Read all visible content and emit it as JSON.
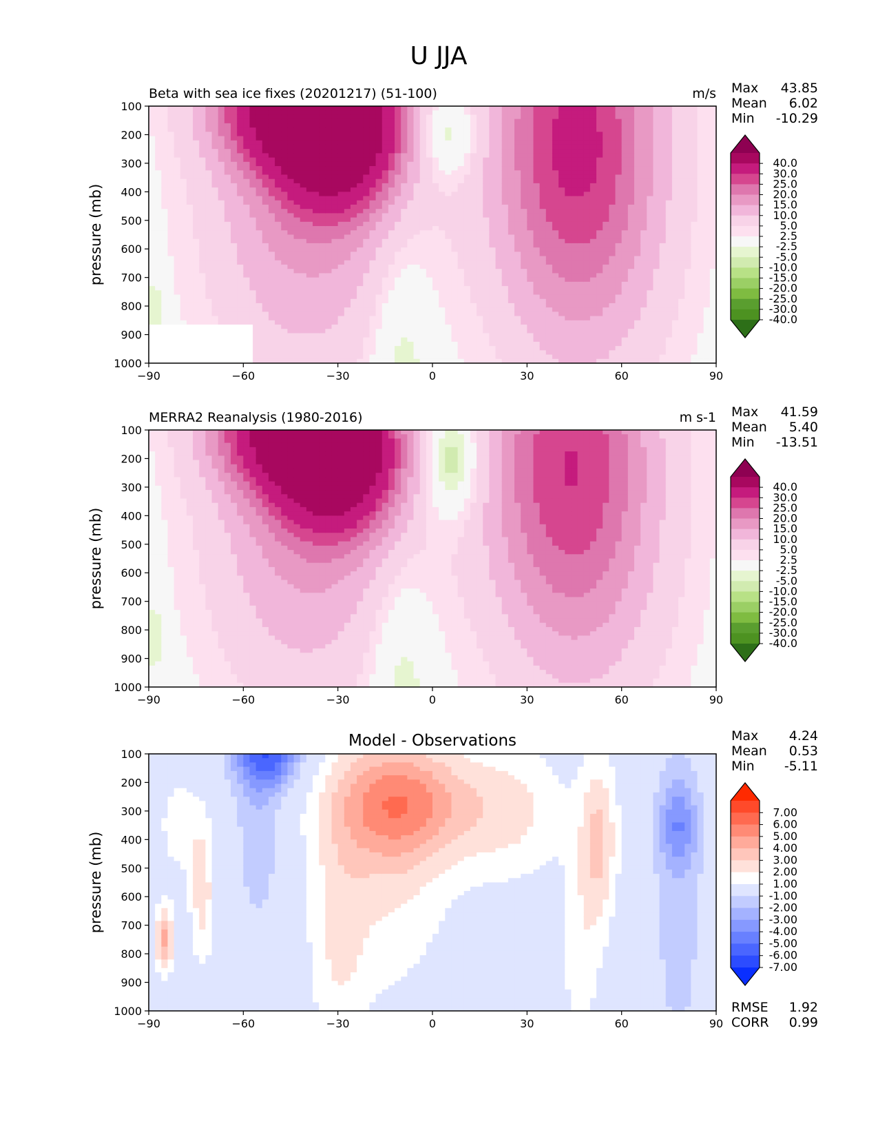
{
  "figure_title": "U JJA",
  "chart_data": [
    {
      "type": "heatmap",
      "title": "Beta with sea ice fixes (20201217) (51-100)",
      "units": "m/s",
      "ylabel": "pressure (mb)",
      "x_ticks": [
        "−90",
        "−60",
        "−30",
        "0",
        "30",
        "60",
        "90"
      ],
      "y_ticks": [
        "100",
        "200",
        "300",
        "400",
        "500",
        "600",
        "700",
        "800",
        "900",
        "1000"
      ],
      "xlim": [
        -90,
        90
      ],
      "ylim": [
        1000,
        100
      ],
      "stats": [
        {
          "label": "Max",
          "value": "43.85"
        },
        {
          "label": "Mean",
          "value": "6.02"
        },
        {
          "label": "Min",
          "value": "-10.29"
        }
      ],
      "colorbar_labels": [
        "40.0",
        "30.0",
        "25.0",
        "20.0",
        "15.0",
        "10.0",
        "5.0",
        "2.5",
        "-2.5",
        "-5.0",
        "-10.0",
        "-15.0",
        "-20.0",
        "-25.0",
        "-30.0",
        "-40.0"
      ],
      "colorbar_colors": [
        "#8e0152",
        "#a8085f",
        "#c51b7d",
        "#d6468f",
        "#de77ae",
        "#e899c4",
        "#f1b6da",
        "#f8d3e8",
        "#fde0ef",
        "#f7f7f7",
        "#e6f5d0",
        "#d1ebb0",
        "#b8e186",
        "#9bcf65",
        "#7fbc41",
        "#5a9e2f",
        "#4d9221",
        "#2d6f18"
      ],
      "features": [
        {
          "x": -30,
          "p": 200,
          "rx": 19,
          "rp": 250,
          "peak": 43.85
        },
        {
          "x": -45,
          "p": 100,
          "rx": 24,
          "rp": 200,
          "peak": 32
        },
        {
          "x": -40,
          "p": 350,
          "rx": 32,
          "rp": 720,
          "peak": 18
        },
        {
          "x": 45,
          "p": 200,
          "rx": 26,
          "rp": 650,
          "peak": 26
        },
        {
          "x": 50,
          "p": 450,
          "rx": 33,
          "rp": 850,
          "peak": 7
        },
        {
          "x": -10,
          "p": 1000,
          "rx": 10,
          "rp": 450,
          "peak": -7
        },
        {
          "x": 5,
          "p": 200,
          "rx": 9,
          "rp": 150,
          "peak": -10.29
        },
        {
          "x": -88,
          "p": 820,
          "rx": 3,
          "rp": 150,
          "peak": -6
        }
      ]
    },
    {
      "type": "heatmap",
      "title": "MERRA2 Reanalysis (1980-2016)",
      "units": "m s-1",
      "ylabel": "pressure (mb)",
      "x_ticks": [
        "−90",
        "−60",
        "−30",
        "0",
        "30",
        "60",
        "90"
      ],
      "y_ticks": [
        "100",
        "200",
        "300",
        "400",
        "500",
        "600",
        "700",
        "800",
        "900",
        "1000"
      ],
      "xlim": [
        -90,
        90
      ],
      "ylim": [
        1000,
        100
      ],
      "stats": [
        {
          "label": "Max",
          "value": "41.59"
        },
        {
          "label": "Mean",
          "value": "5.40"
        },
        {
          "label": "Min",
          "value": "-13.51"
        }
      ],
      "colorbar_labels": [
        "40.0",
        "30.0",
        "25.0",
        "20.0",
        "15.0",
        "10.0",
        "5.0",
        "2.5",
        "-2.5",
        "-5.0",
        "-10.0",
        "-15.0",
        "-20.0",
        "-25.0",
        "-30.0",
        "-40.0"
      ],
      "colorbar_colors": [
        "#8e0152",
        "#a8085f",
        "#c51b7d",
        "#d6468f",
        "#de77ae",
        "#e899c4",
        "#f1b6da",
        "#f8d3e8",
        "#fde0ef",
        "#f7f7f7",
        "#e6f5d0",
        "#d1ebb0",
        "#b8e186",
        "#9bcf65",
        "#7fbc41",
        "#5a9e2f",
        "#4d9221",
        "#2d6f18"
      ],
      "features": [
        {
          "x": -30,
          "p": 200,
          "rx": 19,
          "rp": 250,
          "peak": 41.59
        },
        {
          "x": -45,
          "p": 100,
          "rx": 24,
          "rp": 200,
          "peak": 32
        },
        {
          "x": -40,
          "p": 350,
          "rx": 32,
          "rp": 720,
          "peak": 17
        },
        {
          "x": 43,
          "p": 200,
          "rx": 26,
          "rp": 650,
          "peak": 24
        },
        {
          "x": 50,
          "p": 450,
          "rx": 33,
          "rp": 850,
          "peak": 7
        },
        {
          "x": -10,
          "p": 1000,
          "rx": 10,
          "rp": 450,
          "peak": -7
        },
        {
          "x": 6,
          "p": 200,
          "rx": 9,
          "rp": 200,
          "peak": -13.51
        },
        {
          "x": -88,
          "p": 820,
          "rx": 3,
          "rp": 150,
          "peak": -6
        }
      ]
    },
    {
      "type": "heatmap",
      "title": "Model - Observations",
      "units": "",
      "ylabel": "pressure (mb)",
      "x_ticks": [
        "−90",
        "−60",
        "−30",
        "0",
        "30",
        "60",
        "90"
      ],
      "y_ticks": [
        "100",
        "200",
        "300",
        "400",
        "500",
        "600",
        "700",
        "800",
        "900",
        "1000"
      ],
      "xlim": [
        -90,
        90
      ],
      "ylim": [
        1000,
        100
      ],
      "stats": [
        {
          "label": "Max",
          "value": "4.24"
        },
        {
          "label": "Mean",
          "value": "0.53"
        },
        {
          "label": "Min",
          "value": "-5.11"
        }
      ],
      "extra_stats": [
        {
          "label": "RMSE",
          "value": "1.92"
        },
        {
          "label": "CORR",
          "value": "0.99"
        }
      ],
      "colorbar_labels": [
        "7.00",
        "6.00",
        "5.00",
        "4.00",
        "3.00",
        "2.00",
        "1.00",
        "-1.00",
        "-2.00",
        "-3.00",
        "-4.00",
        "-5.00",
        "-6.00",
        "-7.00"
      ],
      "colorbar_colors": [
        "#ff2a00",
        "#ff4a2a",
        "#ff6a50",
        "#ff8a75",
        "#ffaa9a",
        "#ffc6bb",
        "#ffe1da",
        "#ffffff",
        "#dfe5ff",
        "#c2ccff",
        "#a4b2ff",
        "#8699ff",
        "#6880ff",
        "#4a66ff",
        "#2c4cff",
        "#0a2fff"
      ],
      "features": [
        {
          "x": -10,
          "p": 270,
          "rx": 22,
          "rp": 200,
          "peak": 4.24
        },
        {
          "x": -15,
          "p": 450,
          "rx": 22,
          "rp": 500,
          "peak": 2.2
        },
        {
          "x": -30,
          "p": 800,
          "rx": 9,
          "rp": 450,
          "peak": 1.5
        },
        {
          "x": 25,
          "p": 300,
          "rx": 18,
          "rp": 250,
          "peak": 2.2
        },
        {
          "x": 53,
          "p": 400,
          "rx": 6,
          "rp": 300,
          "peak": 3
        },
        {
          "x": 47,
          "p": 800,
          "rx": 7,
          "rp": 400,
          "peak": 1.5
        },
        {
          "x": -85,
          "p": 750,
          "rx": 3,
          "rp": 120,
          "peak": 4.2
        },
        {
          "x": -80,
          "p": 350,
          "rx": 8,
          "rp": 200,
          "peak": 1.5
        },
        {
          "x": -73,
          "p": 600,
          "rx": 4,
          "rp": 250,
          "peak": 2.5
        },
        {
          "x": -52,
          "p": 100,
          "rx": 11,
          "rp": 120,
          "peak": -5.11
        },
        {
          "x": -55,
          "p": 350,
          "rx": 8,
          "rp": 400,
          "peak": -1.8
        },
        {
          "x": 78,
          "p": 350,
          "rx": 6,
          "rp": 150,
          "peak": -2.8
        },
        {
          "x": 78,
          "p": 600,
          "rx": 9,
          "rp": 700,
          "peak": -1.5
        }
      ]
    }
  ]
}
